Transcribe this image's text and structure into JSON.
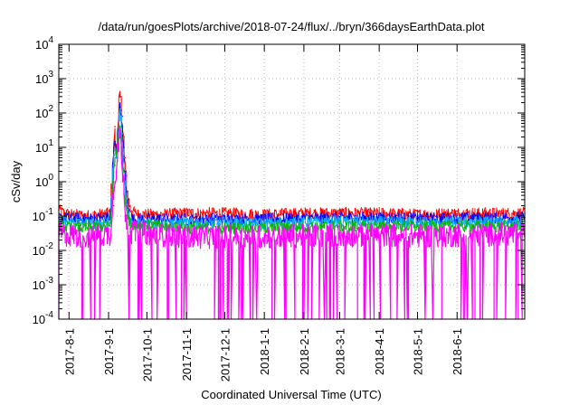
{
  "chart_data": {
    "type": "line",
    "title": "/data/run/goesPlots/archive/2018-07-24/flux/../bryn/366daysEarthData.plot",
    "xlabel": "Coordinated Universal Time (UTC)",
    "ylabel": "cSv/day",
    "y_scale": "log",
    "ylim": [
      0.0001,
      10000
    ],
    "xlim": [
      "2017-07-24",
      "2018-07-24"
    ],
    "grid": true,
    "y_ticks": [
      {
        "value": 0.0001,
        "base": "10",
        "exp": "-4"
      },
      {
        "value": 0.001,
        "base": "10",
        "exp": "-3"
      },
      {
        "value": 0.01,
        "base": "10",
        "exp": "-2"
      },
      {
        "value": 0.1,
        "base": "10",
        "exp": "-1"
      },
      {
        "value": 1,
        "base": "10",
        "exp": "0"
      },
      {
        "value": 10,
        "base": "10",
        "exp": "1"
      },
      {
        "value": 100,
        "base": "10",
        "exp": "2"
      },
      {
        "value": 1000,
        "base": "10",
        "exp": "3"
      },
      {
        "value": 10000,
        "base": "10",
        "exp": "4"
      }
    ],
    "x_ticks": [
      {
        "date": "2017-08-01",
        "label": "2017-8-1"
      },
      {
        "date": "2017-09-01",
        "label": "2017-9-1"
      },
      {
        "date": "2017-10-01",
        "label": "2017-10-1"
      },
      {
        "date": "2017-11-01",
        "label": "2017-11-1"
      },
      {
        "date": "2017-12-01",
        "label": "2017-12-1"
      },
      {
        "date": "2018-01-01",
        "label": "2018-1-1"
      },
      {
        "date": "2018-02-01",
        "label": "2018-2-1"
      },
      {
        "date": "2018-03-01",
        "label": "2018-3-1"
      },
      {
        "date": "2018-04-01",
        "label": "2018-4-1"
      },
      {
        "date": "2018-05-01",
        "label": "2018-5-1"
      },
      {
        "date": "2018-06-01",
        "label": "2018-6-1"
      }
    ],
    "series": [
      {
        "color": "#ff0000",
        "values": [
          {
            "date": "2017-07-24",
            "y": 0.15
          },
          {
            "date": "2017-07-29",
            "y": 0.12
          },
          {
            "date": "2017-08-05",
            "y": 0.11
          },
          {
            "date": "2017-08-15",
            "y": 0.1
          },
          {
            "date": "2017-08-25",
            "y": 0.11
          },
          {
            "date": "2017-09-03",
            "y": 0.12
          },
          {
            "date": "2017-09-04",
            "y": 1
          },
          {
            "date": "2017-09-05",
            "y": 0.2
          },
          {
            "date": "2017-09-06",
            "y": 40
          },
          {
            "date": "2017-09-07",
            "y": 5
          },
          {
            "date": "2017-09-08",
            "y": 15
          },
          {
            "date": "2017-09-09",
            "y": 60
          },
          {
            "date": "2017-09-10",
            "y": 300
          },
          {
            "date": "2017-09-11",
            "y": 250
          },
          {
            "date": "2017-09-12",
            "y": 80
          },
          {
            "date": "2017-09-13",
            "y": 20
          },
          {
            "date": "2017-09-14",
            "y": 5
          },
          {
            "date": "2017-09-15",
            "y": 1.5
          },
          {
            "date": "2017-09-17",
            "y": 0.3
          },
          {
            "date": "2017-09-19",
            "y": 0.14
          },
          {
            "date": "2017-09-25",
            "y": 0.11
          },
          {
            "date": "2017-10-10",
            "y": 0.11
          },
          {
            "date": "2017-11-01",
            "y": 0.12
          },
          {
            "date": "2017-12-01",
            "y": 0.12
          },
          {
            "date": "2018-01-01",
            "y": 0.11
          },
          {
            "date": "2018-02-01",
            "y": 0.12
          },
          {
            "date": "2018-03-01",
            "y": 0.12
          },
          {
            "date": "2018-04-01",
            "y": 0.12
          },
          {
            "date": "2018-05-01",
            "y": 0.11
          },
          {
            "date": "2018-06-01",
            "y": 0.12
          },
          {
            "date": "2018-07-24",
            "y": 0.12
          }
        ]
      },
      {
        "color": "#0000ff",
        "values": [
          {
            "date": "2017-07-24",
            "y": 0.09
          },
          {
            "date": "2017-08-15",
            "y": 0.08
          },
          {
            "date": "2017-09-03",
            "y": 0.09
          },
          {
            "date": "2017-09-06",
            "y": 15
          },
          {
            "date": "2017-09-08",
            "y": 8
          },
          {
            "date": "2017-09-10",
            "y": 150
          },
          {
            "date": "2017-09-11",
            "y": 120
          },
          {
            "date": "2017-09-12",
            "y": 40
          },
          {
            "date": "2017-09-13",
            "y": 10
          },
          {
            "date": "2017-09-14",
            "y": 2
          },
          {
            "date": "2017-09-15",
            "y": 0.5
          },
          {
            "date": "2017-09-17",
            "y": 0.15
          },
          {
            "date": "2017-09-20",
            "y": 0.08
          },
          {
            "date": "2017-11-01",
            "y": 0.08
          },
          {
            "date": "2018-01-01",
            "y": 0.08
          },
          {
            "date": "2018-03-01",
            "y": 0.09
          },
          {
            "date": "2018-05-01",
            "y": 0.085
          },
          {
            "date": "2018-07-24",
            "y": 0.09
          }
        ]
      },
      {
        "color": "#00aaff",
        "values": [
          {
            "date": "2017-07-24",
            "y": 0.07
          },
          {
            "date": "2017-08-15",
            "y": 0.06
          },
          {
            "date": "2017-09-03",
            "y": 0.07
          },
          {
            "date": "2017-09-06",
            "y": 8
          },
          {
            "date": "2017-09-08",
            "y": 4
          },
          {
            "date": "2017-09-10",
            "y": 100
          },
          {
            "date": "2017-09-11",
            "y": 80
          },
          {
            "date": "2017-09-12",
            "y": 25
          },
          {
            "date": "2017-09-13",
            "y": 5
          },
          {
            "date": "2017-09-14",
            "y": 1
          },
          {
            "date": "2017-09-15",
            "y": 0.3
          },
          {
            "date": "2017-09-17",
            "y": 0.1
          },
          {
            "date": "2017-09-20",
            "y": 0.06
          },
          {
            "date": "2017-11-01",
            "y": 0.065
          },
          {
            "date": "2018-01-01",
            "y": 0.06
          },
          {
            "date": "2018-03-01",
            "y": 0.07
          },
          {
            "date": "2018-05-01",
            "y": 0.065
          },
          {
            "date": "2018-07-24",
            "y": 0.07
          }
        ]
      },
      {
        "color": "#00bb00",
        "values": [
          {
            "date": "2017-07-24",
            "y": 0.05
          },
          {
            "date": "2017-08-15",
            "y": 0.045
          },
          {
            "date": "2017-09-03",
            "y": 0.05
          },
          {
            "date": "2017-09-06",
            "y": 3
          },
          {
            "date": "2017-09-10",
            "y": 40
          },
          {
            "date": "2017-09-11",
            "y": 30
          },
          {
            "date": "2017-09-12",
            "y": 8
          },
          {
            "date": "2017-09-13",
            "y": 2
          },
          {
            "date": "2017-09-15",
            "y": 0.2
          },
          {
            "date": "2017-09-18",
            "y": 0.06
          },
          {
            "date": "2017-11-01",
            "y": 0.045
          },
          {
            "date": "2018-01-01",
            "y": 0.045
          },
          {
            "date": "2018-03-01",
            "y": 0.05
          },
          {
            "date": "2018-05-01",
            "y": 0.05
          },
          {
            "date": "2018-07-24",
            "y": 0.05
          }
        ]
      },
      {
        "color": "#ff00ff",
        "values": [
          {
            "date": "2017-07-24",
            "y": 0.03
          },
          {
            "date": "2017-08-15",
            "y": 0.025
          },
          {
            "date": "2017-09-03",
            "y": 0.03
          },
          {
            "date": "2017-09-06",
            "y": 1
          },
          {
            "date": "2017-09-10",
            "y": 20
          },
          {
            "date": "2017-09-11",
            "y": 15
          },
          {
            "date": "2017-09-12",
            "y": 4
          },
          {
            "date": "2017-09-13",
            "y": 1
          },
          {
            "date": "2017-09-15",
            "y": 0.1
          },
          {
            "date": "2017-09-18",
            "y": 0.035
          },
          {
            "date": "2017-11-01",
            "y": 0.025
          },
          {
            "date": "2018-01-01",
            "y": 0.025
          },
          {
            "date": "2018-03-01",
            "y": 0.028
          },
          {
            "date": "2018-05-01",
            "y": 0.027
          },
          {
            "date": "2018-07-24",
            "y": 0.03
          }
        ]
      }
    ]
  }
}
